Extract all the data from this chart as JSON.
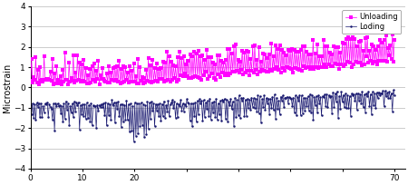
{
  "title": "",
  "xlabel": "",
  "ylabel": "Microstrain",
  "ylim": [
    -4,
    4
  ],
  "yticks": [
    -4,
    -3,
    -2,
    -1,
    0,
    1,
    2,
    3,
    4
  ],
  "xlim": [
    0,
    72
  ],
  "loading_color": "#191970",
  "unloading_color": "#FF00FF",
  "legend_loading": "Loding",
  "legend_unloading": "Unloading",
  "n_points": 350,
  "seed": 7
}
